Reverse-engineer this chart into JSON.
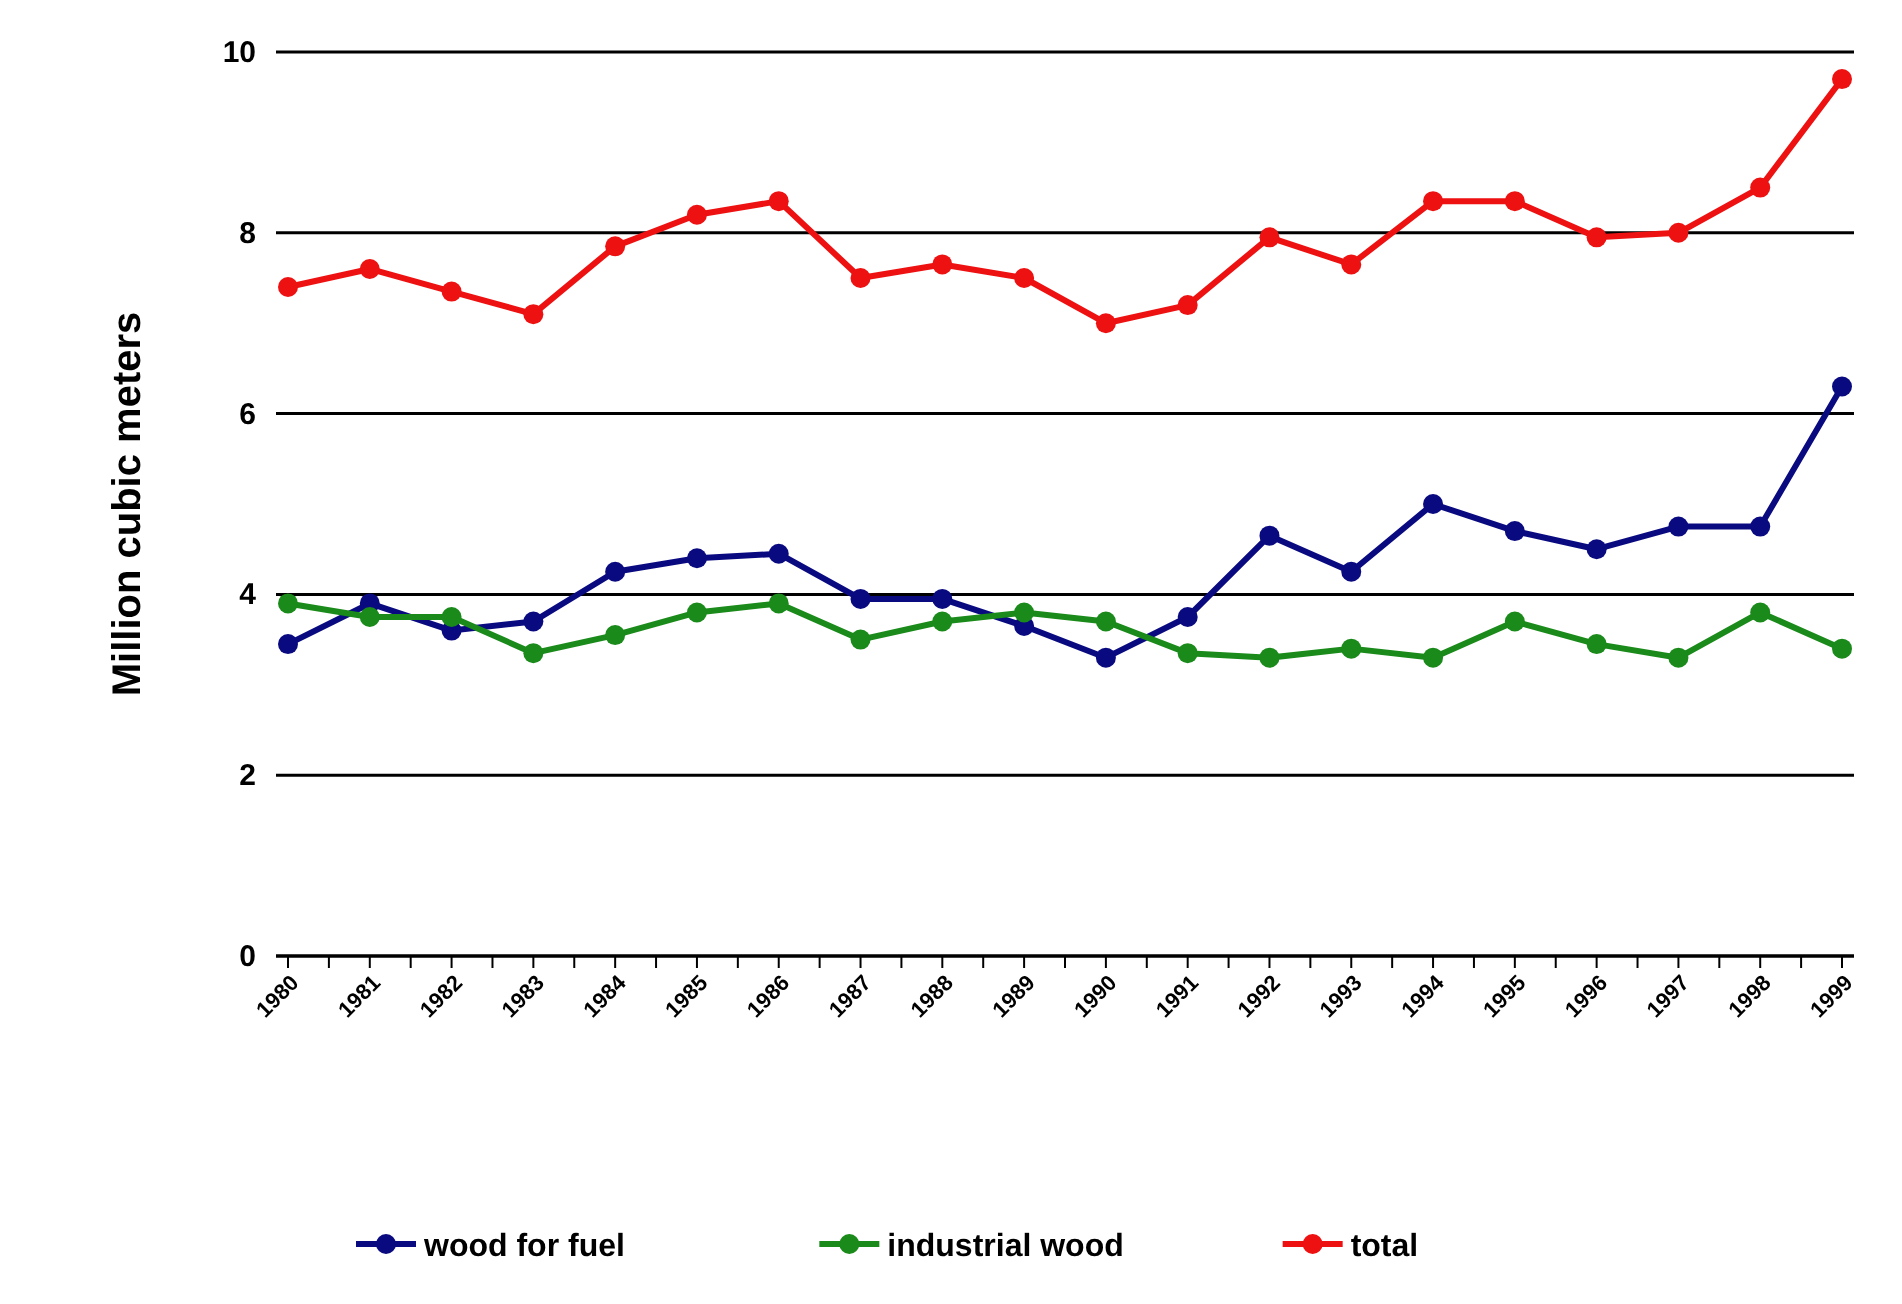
{
  "chart_data": {
    "type": "line",
    "ylabel": "Million cubic meters",
    "categories": [
      "1980",
      "1981",
      "1982",
      "1983",
      "1984",
      "1985",
      "1986",
      "1987",
      "1988",
      "1989",
      "1990",
      "1991",
      "1992",
      "1993",
      "1994",
      "1995",
      "1996",
      "1997",
      "1998",
      "1999"
    ],
    "series": [
      {
        "name": "wood for fuel",
        "color": "#0a0a80",
        "values": [
          3.45,
          3.9,
          3.6,
          3.7,
          4.25,
          4.4,
          4.45,
          3.95,
          3.95,
          3.65,
          3.3,
          3.75,
          4.65,
          4.25,
          5.0,
          4.7,
          4.5,
          4.75,
          4.75,
          6.3
        ]
      },
      {
        "name": "industrial wood",
        "color": "#1a8a1a",
        "values": [
          3.9,
          3.75,
          3.75,
          3.35,
          3.55,
          3.8,
          3.9,
          3.5,
          3.7,
          3.8,
          3.7,
          3.35,
          3.3,
          3.4,
          3.3,
          3.7,
          3.45,
          3.3,
          3.8,
          3.4
        ]
      },
      {
        "name": "total",
        "color": "#ee1111",
        "values": [
          7.4,
          7.6,
          7.35,
          7.1,
          7.85,
          8.2,
          8.35,
          7.5,
          7.65,
          7.5,
          7.0,
          7.2,
          7.95,
          7.65,
          8.35,
          8.35,
          7.95,
          8.0,
          8.5,
          9.7
        ]
      }
    ],
    "ylim": [
      0,
      10
    ],
    "yticks": [
      0,
      2,
      4,
      6,
      8,
      10
    ],
    "grid": "y",
    "legend": "bottom",
    "marker": "circle",
    "line_style": "solid"
  }
}
